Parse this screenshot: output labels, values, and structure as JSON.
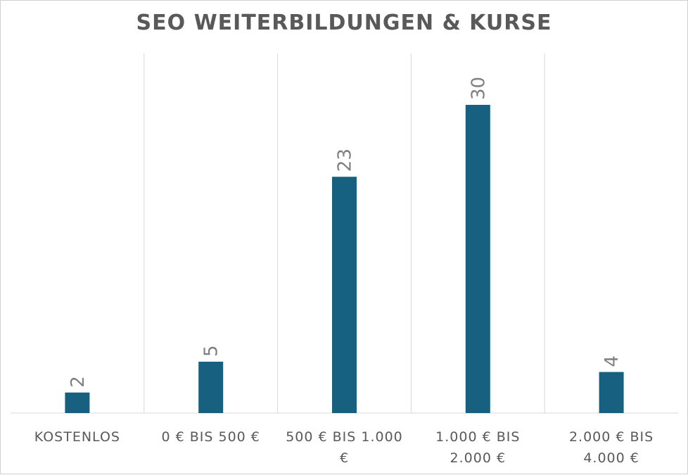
{
  "chart_data": {
    "type": "bar",
    "title": "SEO WEITERBILDUNGEN & KURSE",
    "xlabel": "",
    "ylabel": "",
    "categories": [
      [
        "KOSTENLOS"
      ],
      [
        "0 € BIS 500 €"
      ],
      [
        "500 € BIS 1.000",
        "€"
      ],
      [
        "1.000 € BIS",
        "2.000 €"
      ],
      [
        "2.000 € BIS",
        "4.000 €"
      ]
    ],
    "values": [
      2,
      5,
      23,
      30,
      4
    ],
    "ylim": [
      0,
      30
    ],
    "grid": "vertical category dividers",
    "legend": "none",
    "data_labels": "rotated above bars"
  },
  "colors": {
    "bar": "#17607f",
    "label_text": "#595959",
    "value_text": "#7f7f7f",
    "grid": "#d9d9d9"
  }
}
